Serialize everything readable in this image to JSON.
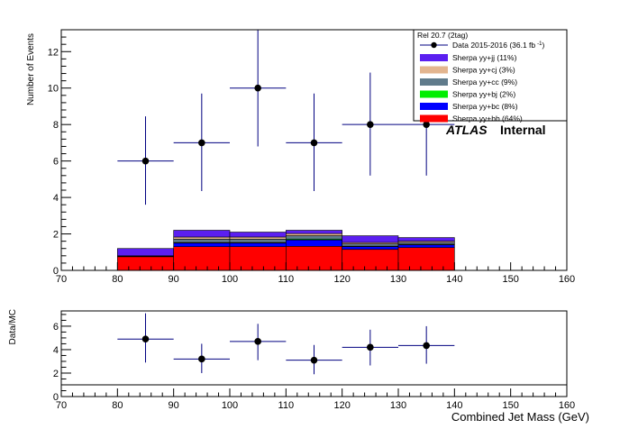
{
  "chart_data": [
    {
      "type": "bar",
      "stacked": true,
      "ylabel": "Number of Events",
      "xlim": [
        70,
        160
      ],
      "ylim": [
        0,
        13.2
      ],
      "xticks": [
        70,
        80,
        90,
        100,
        110,
        120,
        130,
        140,
        150,
        160
      ],
      "yticks": [
        0,
        2,
        4,
        6,
        8,
        10,
        12
      ],
      "bins": [
        [
          80,
          90
        ],
        [
          90,
          100
        ],
        [
          100,
          110
        ],
        [
          110,
          120
        ],
        [
          120,
          130
        ],
        [
          130,
          140
        ]
      ],
      "series": [
        {
          "name": "Sherpa yy+bb (64%)",
          "color": "#ff0000",
          "values": [
            0.75,
            1.3,
            1.3,
            1.32,
            1.15,
            1.25
          ]
        },
        {
          "name": "Sherpa yy+bc (8%)",
          "color": "#0000ff",
          "values": [
            0.0,
            0.2,
            0.2,
            0.35,
            0.15,
            0.15
          ]
        },
        {
          "name": "Sherpa yy+bj (2%)",
          "color": "#00ee00",
          "values": [
            0.0,
            0.03,
            0.03,
            0.05,
            0.03,
            0.03
          ]
        },
        {
          "name": "Sherpa yy+cc (9%)",
          "color": "#607b8b",
          "values": [
            0.02,
            0.18,
            0.18,
            0.18,
            0.12,
            0.1
          ]
        },
        {
          "name": "Sherpa yy+cj (3%)",
          "color": "#e3b58f",
          "values": [
            0.03,
            0.12,
            0.12,
            0.12,
            0.08,
            0.07
          ]
        },
        {
          "name": "Sherpa yy+jj (11%)",
          "color": "#5b1ff0",
          "values": [
            0.4,
            0.37,
            0.27,
            0.18,
            0.37,
            0.2
          ]
        }
      ],
      "data_points": {
        "name": "Data 2015-2016 (36.1 fb",
        "name_sup": "-1",
        "name_end": ")",
        "color": "#000080",
        "x": [
          85,
          95,
          105,
          115,
          125,
          135
        ],
        "y": [
          6,
          7,
          10,
          7,
          8,
          8
        ],
        "err_low": [
          2.4,
          2.65,
          3.2,
          2.65,
          2.8,
          2.8
        ],
        "err_high": [
          2.45,
          2.7,
          3.3,
          2.7,
          2.85,
          2.85
        ]
      },
      "legend": {
        "header": "Rel 20.7 (2tag)",
        "placement": "top-right"
      },
      "annotation": {
        "atlas": "ATLAS",
        "label": "Internal"
      }
    },
    {
      "type": "scatter",
      "xlabel": "Combined Jet Mass (GeV)",
      "ylabel": "Data/MC",
      "xlim": [
        70,
        160
      ],
      "ylim": [
        0,
        7.3
      ],
      "xticks": [
        70,
        80,
        90,
        100,
        110,
        120,
        130,
        140,
        150,
        160
      ],
      "yticks": [
        0,
        2,
        4,
        6
      ],
      "reference_line": 1,
      "x": [
        85,
        95,
        105,
        115,
        125,
        135
      ],
      "y": [
        4.9,
        3.2,
        4.7,
        3.1,
        4.2,
        4.35
      ],
      "err_low": [
        2.0,
        1.2,
        1.6,
        1.2,
        1.55,
        1.55
      ],
      "err_high": [
        2.2,
        1.3,
        1.5,
        1.3,
        1.5,
        1.65
      ]
    }
  ]
}
